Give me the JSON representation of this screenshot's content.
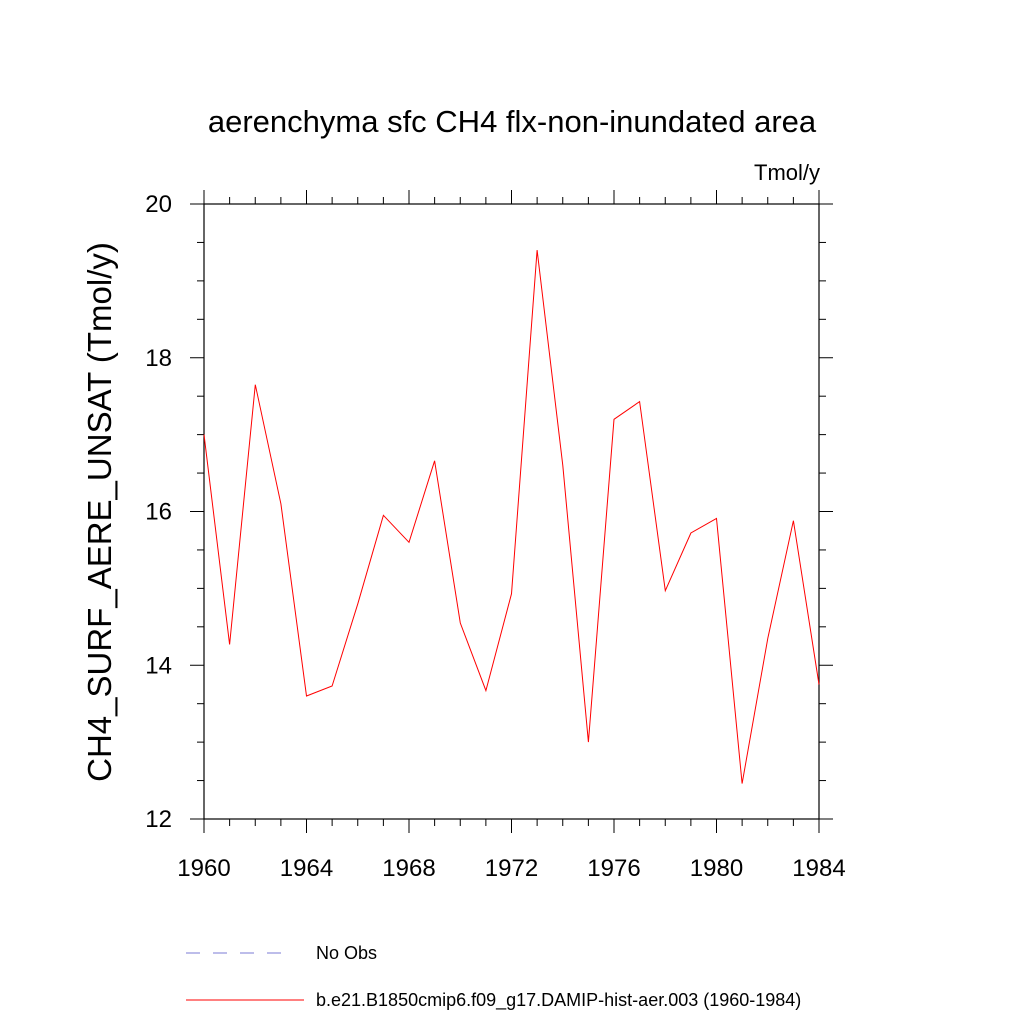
{
  "chart_data": {
    "type": "line",
    "title": "aerenchyma sfc CH4 flx-non-inundated area",
    "units": "Tmol/y",
    "ylabel": "CH4_SURF_AERE_UNSAT  (Tmol/y)",
    "xlabel": "",
    "xlim": [
      1960,
      1984
    ],
    "ylim": [
      12,
      20
    ],
    "x_ticks": [
      "1960",
      "1964",
      "1968",
      "1972",
      "1976",
      "1980",
      "1984"
    ],
    "y_ticks": [
      "12",
      "14",
      "16",
      "18",
      "20"
    ],
    "grid": false,
    "legend_position": "bottom",
    "series": [
      {
        "name": "b.e21.B1850cmip6.f09_g17.DAMIP-hist-aer.003 (1960-1984)",
        "color": "#ff0000",
        "style": "solid",
        "x": [
          1960,
          1961,
          1962,
          1963,
          1964,
          1965,
          1966,
          1967,
          1968,
          1969,
          1970,
          1971,
          1972,
          1973,
          1974,
          1975,
          1976,
          1977,
          1978,
          1979,
          1980,
          1981,
          1982,
          1983,
          1984
        ],
        "y": [
          17.0,
          14.27,
          17.65,
          16.1,
          13.6,
          13.73,
          14.8,
          15.95,
          15.6,
          16.66,
          14.55,
          13.67,
          14.93,
          19.4,
          16.6,
          13.0,
          17.2,
          17.43,
          14.97,
          15.72,
          15.91,
          12.46,
          14.35,
          15.88,
          13.75
        ]
      }
    ],
    "legend": [
      {
        "label": "No Obs",
        "color": "#7b7bd6",
        "style": "dashed"
      },
      {
        "label": "b.e21.B1850cmip6.f09_g17.DAMIP-hist-aer.003 (1960-1984)",
        "color": "#ff0000",
        "style": "solid"
      }
    ]
  }
}
